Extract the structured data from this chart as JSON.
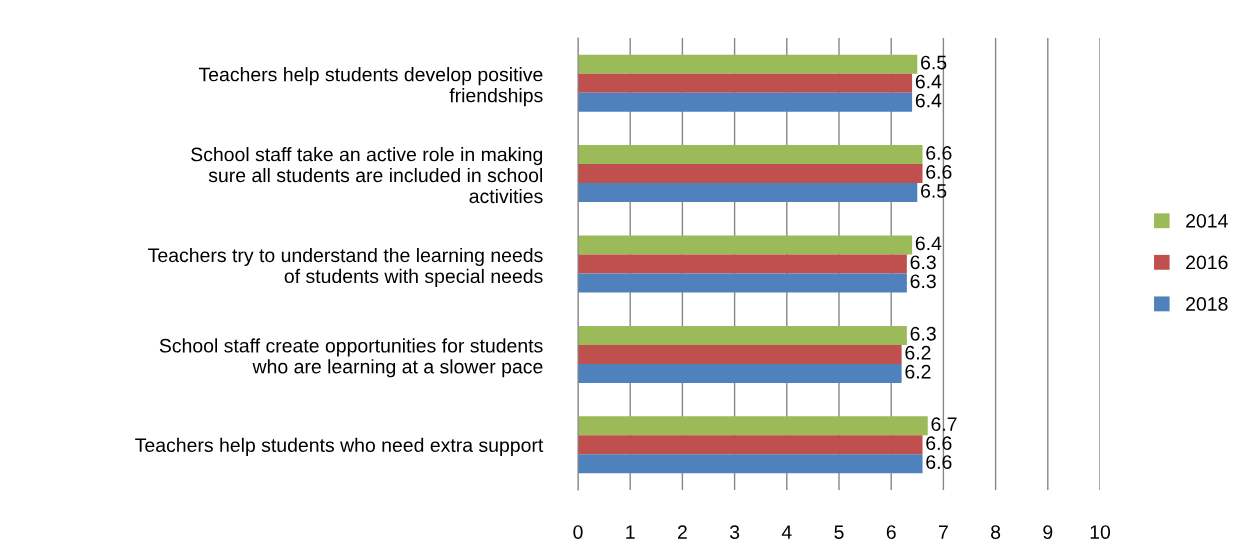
{
  "chart_data": {
    "type": "bar",
    "orientation": "horizontal",
    "categories": [
      "Teachers help students develop positive friendships",
      "School staff take an active role in making sure all students are included in school activities",
      "Teachers try to understand the learning needs of students with special needs",
      "School staff create opportunities for students who are learning at a slower pace",
      "Teachers help students who need extra support"
    ],
    "series": [
      {
        "name": "2014",
        "color": "#9bbb59",
        "values": [
          6.5,
          6.6,
          6.4,
          6.3,
          6.7
        ]
      },
      {
        "name": "2016",
        "color": "#c0504d",
        "values": [
          6.4,
          6.6,
          6.3,
          6.2,
          6.6
        ]
      },
      {
        "name": "2018",
        "color": "#4f81bd",
        "values": [
          6.4,
          6.5,
          6.3,
          6.2,
          6.6
        ]
      }
    ],
    "xlim": [
      0,
      10
    ],
    "xticks": [
      0,
      1,
      2,
      3,
      4,
      5,
      6,
      7,
      8,
      9,
      10
    ],
    "grid": "x",
    "legend": "right",
    "data_labels": true
  }
}
